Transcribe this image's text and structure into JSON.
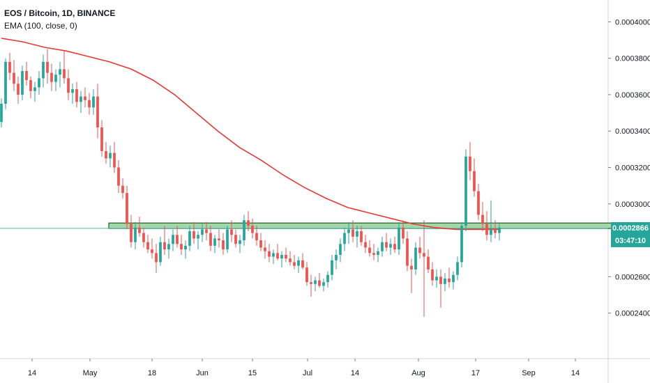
{
  "legend": {
    "symbol": "EOS / Bitcoin, 1D, BINANCE",
    "indicator": "EMA (100, close, 0)"
  },
  "colors": {
    "up": "#26a69a",
    "down": "#ef5350",
    "ema": "#e53935",
    "zone_fill": "#a5d6a7",
    "zone_border": "#1b5e20",
    "last_price_line": "#4db6ac",
    "last_price_tag": "#26a69a",
    "countdown_tag": "#26a69a"
  },
  "chart_data": {
    "type": "candlestick",
    "title": "EOS / Bitcoin, 1D, BINANCE",
    "x_tick_labels": [
      "14",
      "May",
      "18",
      "Jun",
      "15",
      "Jul",
      "14",
      "Aug",
      "17",
      "Sep",
      "14"
    ],
    "y_tick_labels": [
      "0.0004000",
      "0.0003800",
      "0.0003600",
      "0.0003400",
      "0.0003200",
      "0.0003000",
      "0.0002600",
      "0.0002400"
    ],
    "ylim": [
      0.000215,
      0.000412
    ],
    "last_price": "0.0002866",
    "countdown": "03:47:10",
    "support_zone": {
      "low": 0.0002865,
      "high": 0.0002895,
      "start_index": 26,
      "end_index": 152
    },
    "ema_label": "EMA (100, close, 0)",
    "ema": [
      0.000391,
      0.000389,
      0.000386,
      0.000384,
      0.000381,
      0.000378,
      0.000374,
      0.000368,
      0.00036,
      0.00035,
      0.00034,
      0.000331,
      0.000324,
      0.000316,
      0.000309,
      0.000303,
      0.000298,
      0.000295,
      0.000292,
      0.000289,
      0.000287,
      0.000286,
      0.000286
    ],
    "ema_x": [
      0,
      10,
      20,
      30,
      40,
      50,
      60,
      70,
      80,
      90,
      100,
      110,
      120,
      130,
      140,
      150,
      160,
      170,
      180,
      190,
      200,
      210,
      230
    ],
    "candles": [
      [
        0.000345,
        0.000358,
        0.000342,
        0.000355
      ],
      [
        0.000355,
        0.00038,
        0.000352,
        0.000378
      ],
      [
        0.000378,
        0.000383,
        0.000368,
        0.000372
      ],
      [
        0.000372,
        0.000379,
        0.000362,
        0.000366
      ],
      [
        0.000366,
        0.00037,
        0.000355,
        0.00036
      ],
      [
        0.00036,
        0.000376,
        0.000357,
        0.000373
      ],
      [
        0.000373,
        0.000378,
        0.000365,
        0.000368
      ],
      [
        0.000368,
        0.00037,
        0.000358,
        0.000362
      ],
      [
        0.000362,
        0.000367,
        0.000356,
        0.000364
      ],
      [
        0.000364,
        0.000373,
        0.00036,
        0.000369
      ],
      [
        0.000369,
        0.000382,
        0.000364,
        0.000378
      ],
      [
        0.000378,
        0.000385,
        0.000366,
        0.000372
      ],
      [
        0.000372,
        0.000377,
        0.000362,
        0.000367
      ],
      [
        0.000367,
        0.000374,
        0.000362,
        0.000371
      ],
      [
        0.000371,
        0.000378,
        0.000364,
        0.000374
      ],
      [
        0.000374,
        0.000384,
        0.000366,
        0.000369
      ],
      [
        0.000369,
        0.000374,
        0.000357,
        0.000361
      ],
      [
        0.000361,
        0.000366,
        0.000355,
        0.000363
      ],
      [
        0.000363,
        0.000367,
        0.000353,
        0.000356
      ],
      [
        0.000356,
        0.000362,
        0.00035,
        0.000359
      ],
      [
        0.000359,
        0.000364,
        0.000353,
        0.000357
      ],
      [
        0.000357,
        0.000361,
        0.000349,
        0.000353
      ],
      [
        0.000353,
        0.000363,
        0.000349,
        0.000359
      ],
      [
        0.000359,
        0.000366,
        0.000336,
        0.000342
      ],
      [
        0.000342,
        0.000346,
        0.000326,
        0.000329
      ],
      [
        0.000329,
        0.000334,
        0.000322,
        0.000325
      ],
      [
        0.000325,
        0.000332,
        0.00032,
        0.000328
      ],
      [
        0.000328,
        0.000334,
        0.000317,
        0.00032
      ],
      [
        0.00032,
        0.000324,
        0.000306,
        0.00031
      ],
      [
        0.00031,
        0.000314,
        0.000303,
        0.000306
      ],
      [
        0.000306,
        0.00031,
        0.000286,
        0.000289
      ],
      [
        0.000289,
        0.000294,
        0.000276,
        0.000279
      ],
      [
        0.000279,
        0.00029,
        0.000275,
        0.000287
      ],
      [
        0.000287,
        0.000293,
        0.000282,
        0.000284
      ],
      [
        0.000284,
        0.000287,
        0.000276,
        0.000279
      ],
      [
        0.000279,
        0.000283,
        0.000273,
        0.000275
      ],
      [
        0.000275,
        0.000281,
        0.00027,
        0.000273
      ],
      [
        0.000273,
        0.000278,
        0.000262,
        0.000268
      ],
      [
        0.000268,
        0.000282,
        0.000266,
        0.000279
      ],
      [
        0.000279,
        0.000288,
        0.000272,
        0.000275
      ],
      [
        0.000275,
        0.000281,
        0.00027,
        0.000278
      ],
      [
        0.000278,
        0.000286,
        0.000274,
        0.000283
      ],
      [
        0.000283,
        0.000288,
        0.000276,
        0.000278
      ],
      [
        0.000278,
        0.000283,
        0.000272,
        0.000275
      ],
      [
        0.000275,
        0.00028,
        0.00027,
        0.000277
      ],
      [
        0.000277,
        0.000288,
        0.000274,
        0.000285
      ],
      [
        0.000285,
        0.00029,
        0.000278,
        0.000281
      ],
      [
        0.000281,
        0.000285,
        0.000275,
        0.000283
      ],
      [
        0.000283,
        0.000289,
        0.000279,
        0.000286
      ],
      [
        0.000286,
        0.00029,
        0.00028,
        0.000284
      ],
      [
        0.000284,
        0.000288,
        0.000274,
        0.000277
      ],
      [
        0.000277,
        0.000283,
        0.000273,
        0.000281
      ],
      [
        0.000281,
        0.000286,
        0.000276,
        0.00028
      ],
      [
        0.00028,
        0.000284,
        0.000272,
        0.000275
      ],
      [
        0.000275,
        0.000288,
        0.000273,
        0.000286
      ],
      [
        0.000286,
        0.000291,
        0.000279,
        0.000283
      ],
      [
        0.000283,
        0.000286,
        0.000276,
        0.000278
      ],
      [
        0.000278,
        0.000283,
        0.000273,
        0.00028
      ],
      [
        0.00028,
        0.000294,
        0.000277,
        0.000291
      ],
      [
        0.000291,
        0.000296,
        0.000285,
        0.000288
      ],
      [
        0.000288,
        0.000292,
        0.000281,
        0.000284
      ],
      [
        0.000284,
        0.000288,
        0.000277,
        0.00028
      ],
      [
        0.00028,
        0.000284,
        0.000274,
        0.000276
      ],
      [
        0.000276,
        0.00028,
        0.00027,
        0.000274
      ],
      [
        0.000274,
        0.000278,
        0.000268,
        0.000271
      ],
      [
        0.000271,
        0.000275,
        0.000267,
        0.000273
      ],
      [
        0.000273,
        0.000278,
        0.000269,
        0.00027
      ],
      [
        0.00027,
        0.000274,
        0.000265,
        0.000272
      ],
      [
        0.000272,
        0.000276,
        0.000268,
        0.00027
      ],
      [
        0.00027,
        0.000274,
        0.000266,
        0.000268
      ],
      [
        0.000268,
        0.000272,
        0.000264,
        0.000266
      ],
      [
        0.000266,
        0.000271,
        0.000262,
        0.000269
      ],
      [
        0.000269,
        0.000273,
        0.000264,
        0.000265
      ],
      [
        0.000265,
        0.000268,
        0.000255,
        0.000257
      ],
      [
        0.000257,
        0.000261,
        0.000249,
        0.000256
      ],
      [
        0.000256,
        0.00026,
        0.000252,
        0.000258
      ],
      [
        0.000258,
        0.000262,
        0.000254,
        0.000255
      ],
      [
        0.000255,
        0.000259,
        0.000252,
        0.000257
      ],
      [
        0.000257,
        0.000263,
        0.000254,
        0.000261
      ],
      [
        0.000261,
        0.000272,
        0.000258,
        0.000269
      ],
      [
        0.000269,
        0.000275,
        0.000264,
        0.000272
      ],
      [
        0.000272,
        0.000281,
        0.000268,
        0.000278
      ],
      [
        0.000278,
        0.000287,
        0.000274,
        0.000284
      ],
      [
        0.000284,
        0.00029,
        0.000278,
        0.000286
      ],
      [
        0.000286,
        0.000291,
        0.000279,
        0.000282
      ],
      [
        0.000282,
        0.000288,
        0.000276,
        0.000285
      ],
      [
        0.000285,
        0.000288,
        0.000277,
        0.000279
      ],
      [
        0.000279,
        0.000283,
        0.000273,
        0.000276
      ],
      [
        0.000276,
        0.00028,
        0.000271,
        0.000273
      ],
      [
        0.000273,
        0.000278,
        0.000269,
        0.000272
      ],
      [
        0.000272,
        0.000276,
        0.000268,
        0.000274
      ],
      [
        0.000274,
        0.000282,
        0.000271,
        0.000279
      ],
      [
        0.000279,
        0.000284,
        0.000274,
        0.000276
      ],
      [
        0.000276,
        0.000281,
        0.000272,
        0.000278
      ],
      [
        0.000278,
        0.000282,
        0.000273,
        0.000275
      ],
      [
        0.000275,
        0.00029,
        0.000272,
        0.000287
      ],
      [
        0.000287,
        0.000291,
        0.000278,
        0.000281
      ],
      [
        0.000281,
        0.000285,
        0.000263,
        0.000266
      ],
      [
        0.000266,
        0.00027,
        0.000251,
        0.000264
      ],
      [
        0.000264,
        0.000279,
        0.000261,
        0.000276
      ],
      [
        0.000276,
        0.000282,
        0.00027,
        0.000273
      ],
      [
        0.000273,
        0.000291,
        0.000238,
        0.000271
      ],
      [
        0.000271,
        0.000275,
        0.000262,
        0.000264
      ],
      [
        0.000264,
        0.000268,
        0.000255,
        0.000258
      ],
      [
        0.000258,
        0.000264,
        0.000254,
        0.00026
      ],
      [
        0.00026,
        0.000264,
        0.000243,
        0.000256
      ],
      [
        0.000256,
        0.000262,
        0.000252,
        0.000259
      ],
      [
        0.000259,
        0.000265,
        0.000254,
        0.000257
      ],
      [
        0.000257,
        0.000263,
        0.000253,
        0.000261
      ],
      [
        0.000261,
        0.000271,
        0.000258,
        0.000268
      ],
      [
        0.000268,
        0.00029,
        0.000265,
        0.000288
      ],
      [
        0.000288,
        0.00033,
        0.000285,
        0.000326
      ],
      [
        0.000326,
        0.000334,
        0.000313,
        0.000318
      ],
      [
        0.000318,
        0.000325,
        0.000304,
        0.000307
      ],
      [
        0.000307,
        0.000311,
        0.000291,
        0.000294
      ],
      [
        0.000294,
        0.000301,
        0.000285,
        0.000289
      ],
      [
        0.000289,
        0.000296,
        0.00028,
        0.000283
      ],
      [
        0.000283,
        0.000302,
        0.000279,
        0.000286
      ],
      [
        0.000286,
        0.000291,
        0.000281,
        0.000284
      ],
      [
        0.000284,
        0.000289,
        0.00028,
        0.000287
      ]
    ]
  }
}
